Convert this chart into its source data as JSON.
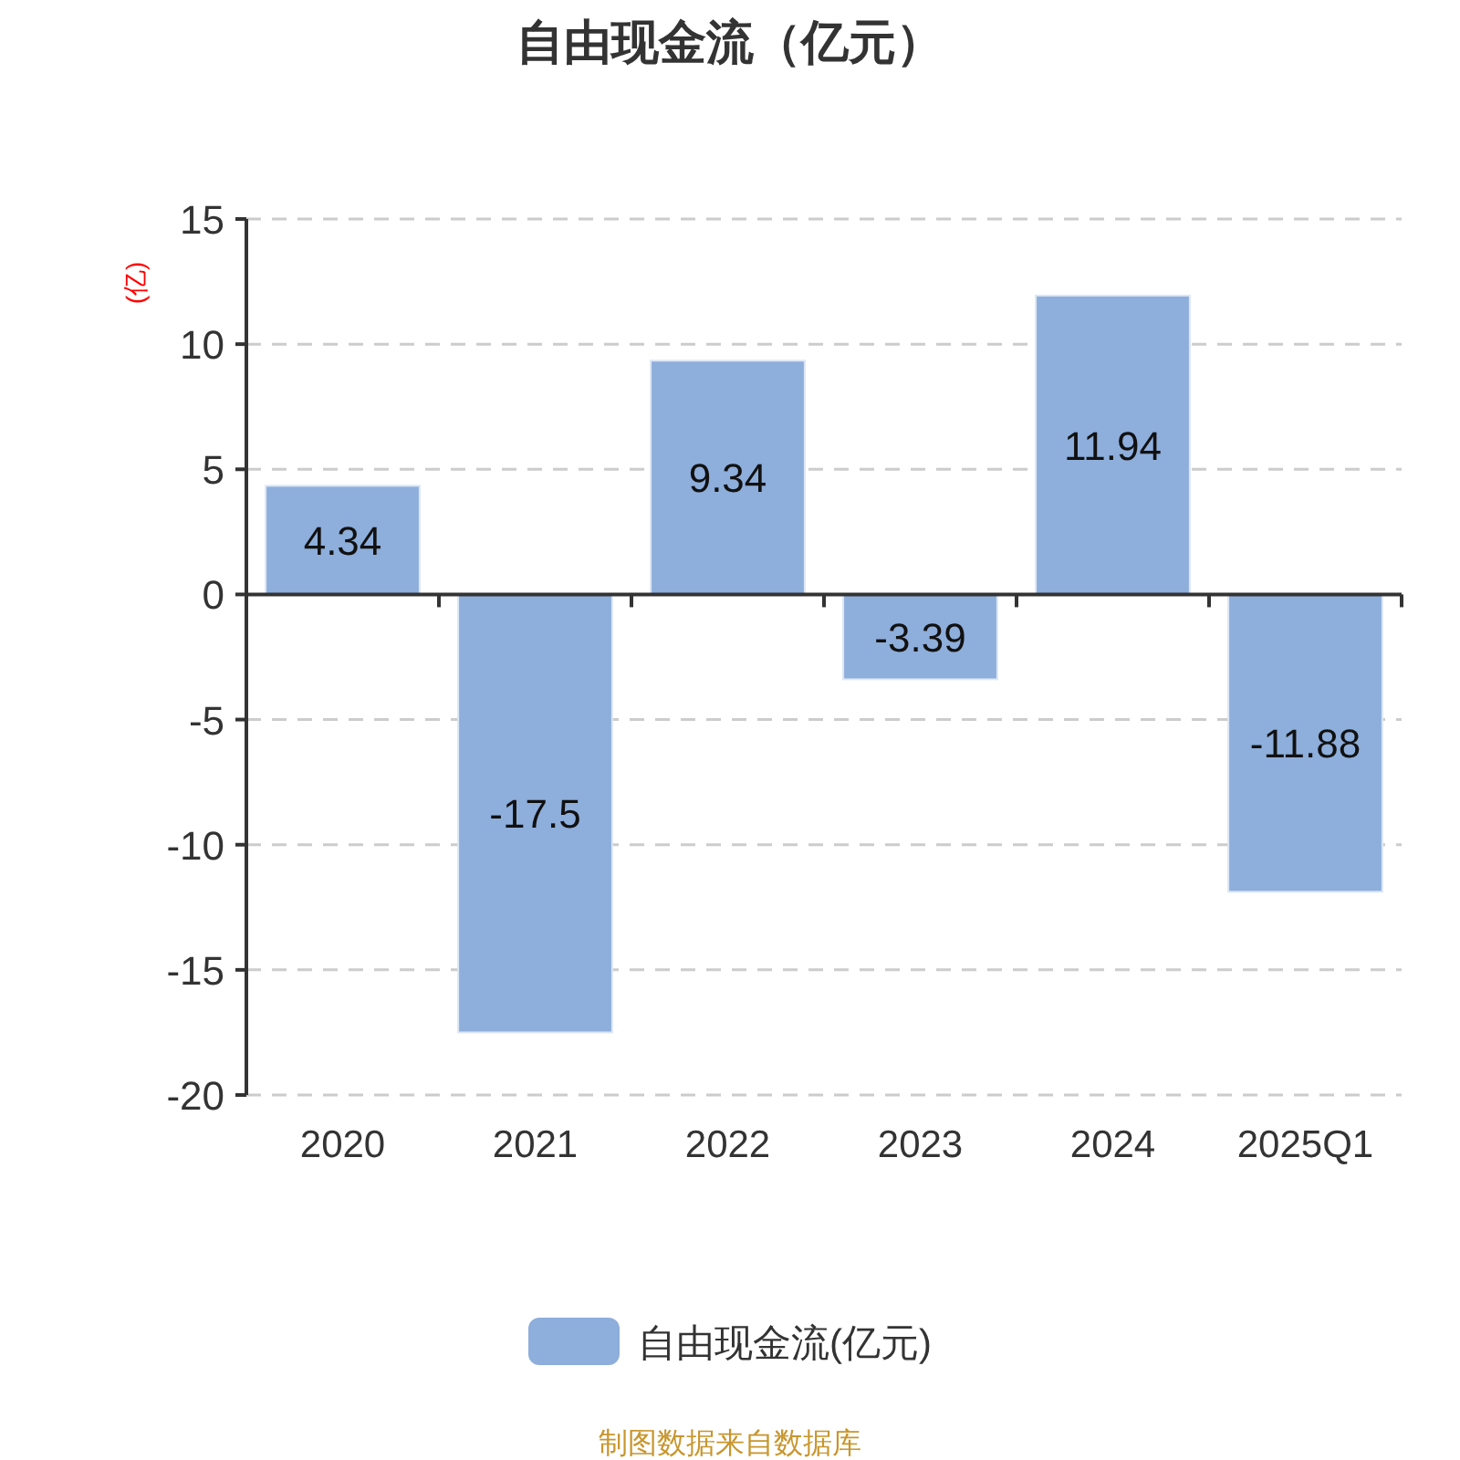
{
  "chart_data": {
    "type": "bar",
    "title": "自由现金流（亿元）",
    "ylabel": "(亿)",
    "categories": [
      "2020",
      "2021",
      "2022",
      "2023",
      "2024",
      "2025Q1"
    ],
    "series": [
      {
        "name": "自由现金流(亿元)",
        "color": "#8eaedb",
        "values": [
          4.34,
          -17.5,
          9.34,
          -3.39,
          11.94,
          -11.88
        ]
      }
    ],
    "ylim": [
      -20,
      15
    ],
    "yticks": [
      -20,
      -15,
      -10,
      -5,
      0,
      5,
      10,
      15
    ],
    "grid": "y",
    "legend": "bottom",
    "data_labels": true,
    "annotations": [
      "制图数据来自数据库"
    ]
  }
}
